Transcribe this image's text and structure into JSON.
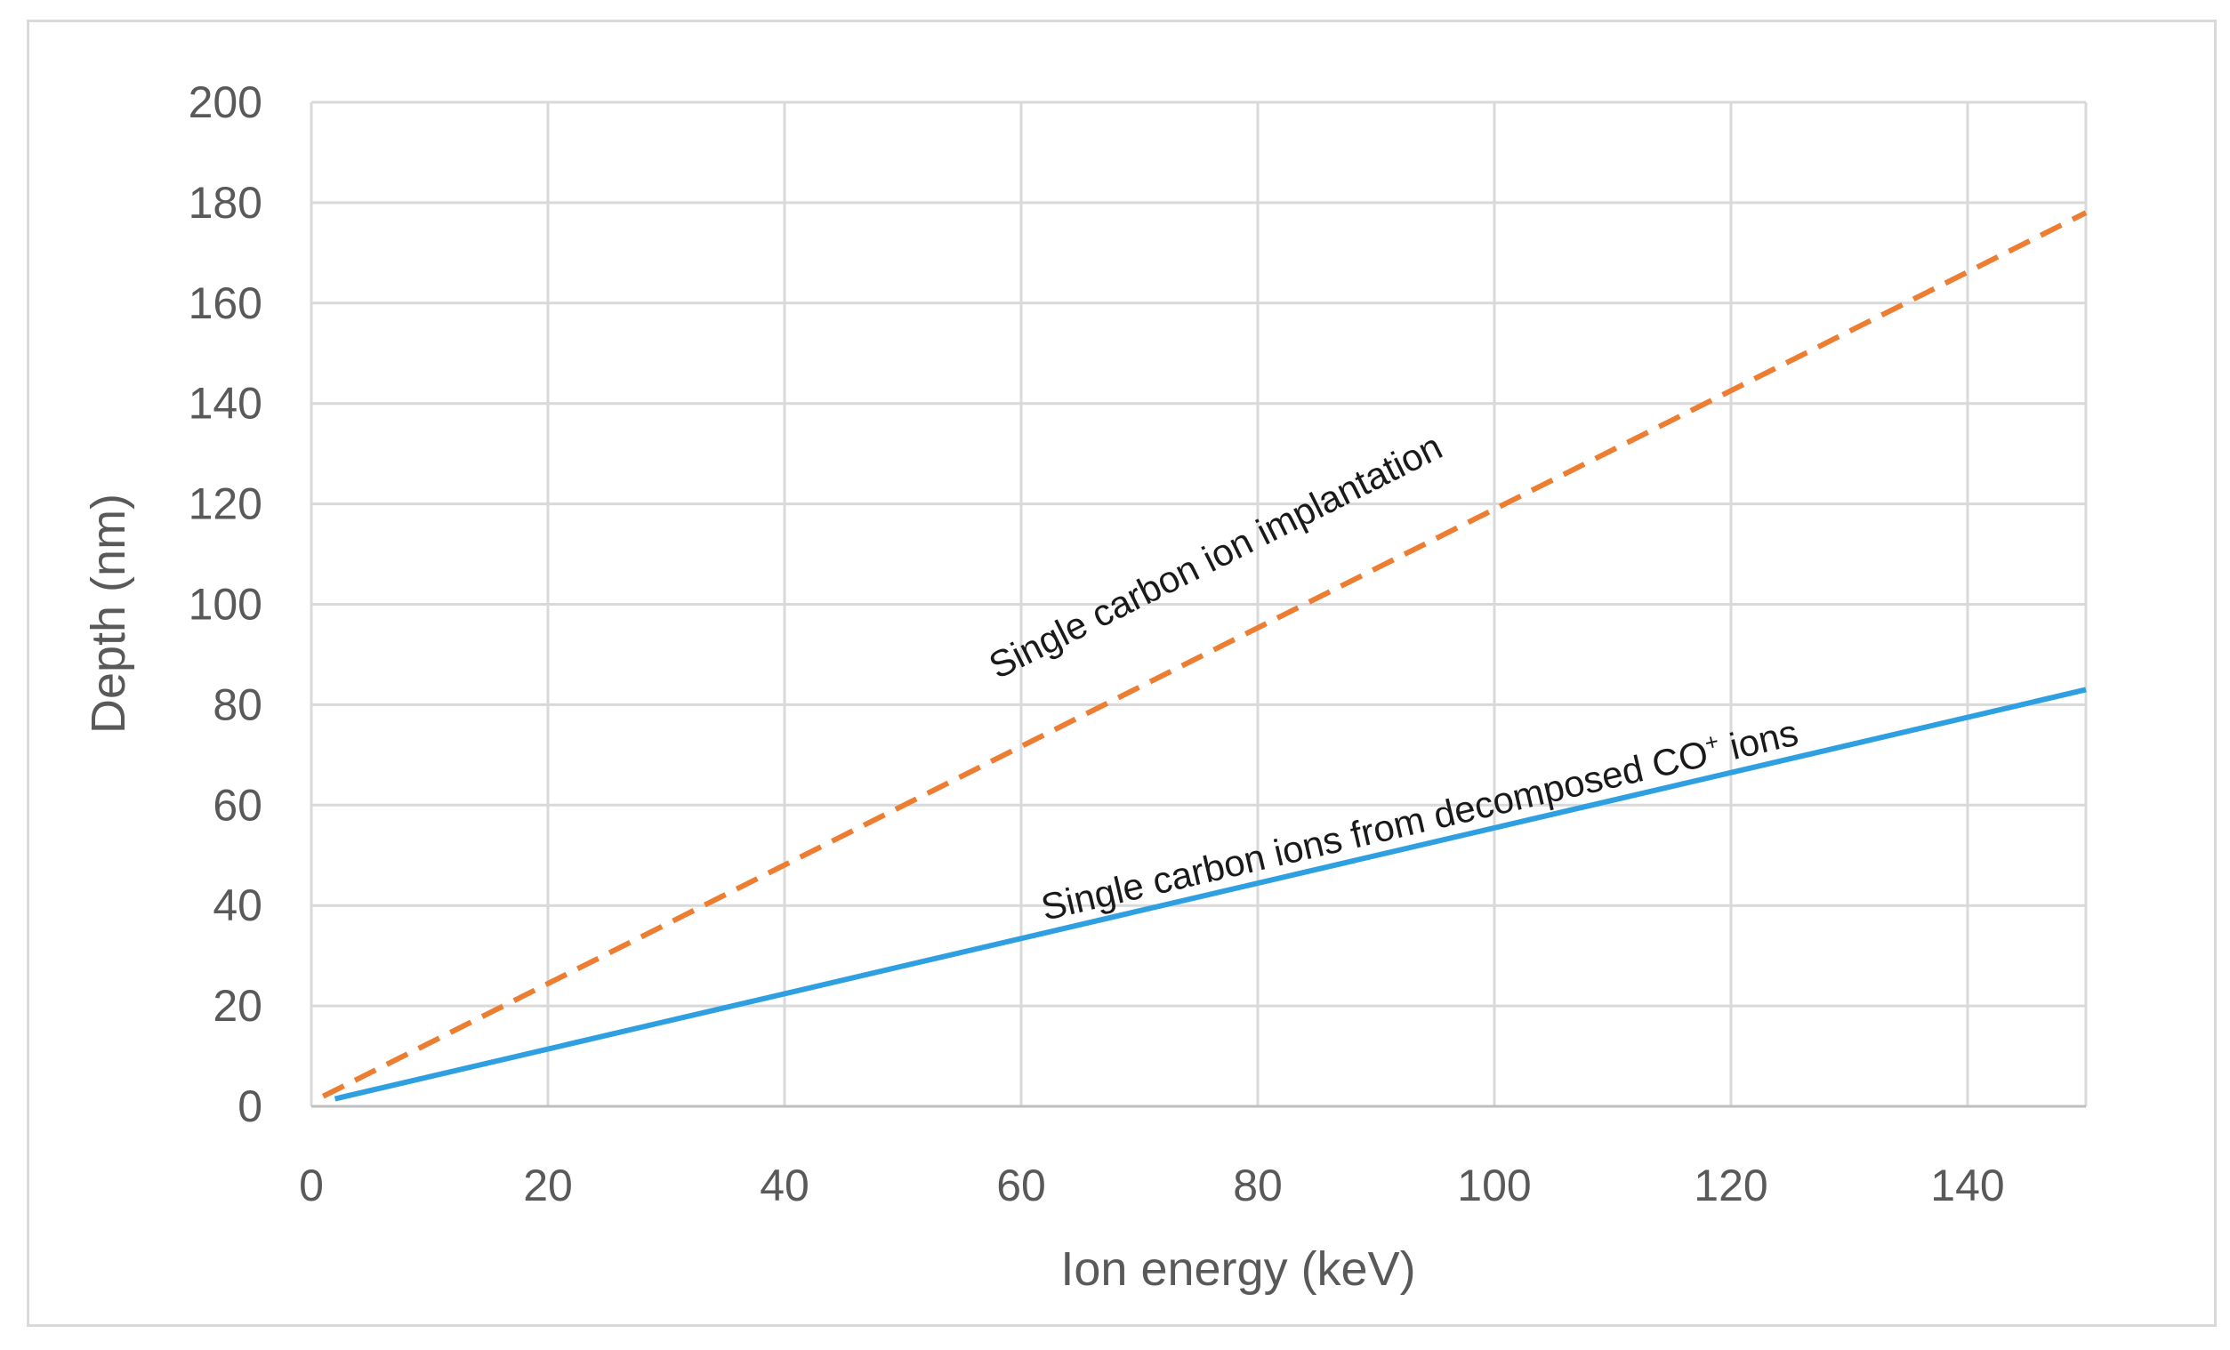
{
  "chart_data": {
    "type": "line",
    "title": "",
    "xlabel": "Ion energy  (keV)",
    "ylabel": "Depth (nm)",
    "xlim": [
      0,
      150
    ],
    "ylim": [
      0,
      200
    ],
    "x_ticks": [
      0,
      20,
      40,
      60,
      80,
      100,
      120,
      140
    ],
    "y_ticks": [
      0,
      20,
      40,
      60,
      80,
      100,
      120,
      140,
      160,
      180,
      200
    ],
    "grid": true,
    "legend": "none",
    "series": [
      {
        "name": "Single carbon ion implantation",
        "color": "#ED7D31",
        "style": "dashed",
        "x": [
          1,
          150
        ],
        "y": [
          2,
          178
        ]
      },
      {
        "name": "Single carbon ions from decomposed CO⁺ ions",
        "color": "#2E9FE0",
        "style": "solid",
        "x": [
          2,
          150
        ],
        "y": [
          1.5,
          83
        ]
      }
    ],
    "annotations": [
      {
        "text": "Single carbon ion implantation",
        "series": 0,
        "x": 58,
        "y": 85
      },
      {
        "text_main": "Single carbon ions from decomposed CO",
        "text_sup": "+",
        "text_tail": " ions",
        "series": 1,
        "x": 62,
        "y": 37
      }
    ]
  }
}
